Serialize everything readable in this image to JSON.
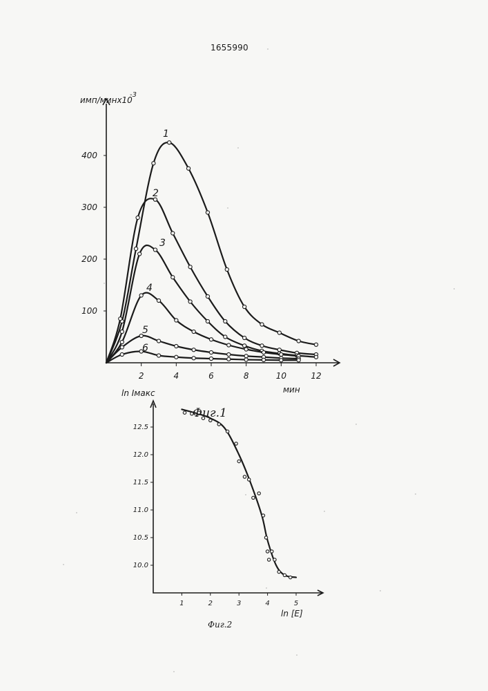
{
  "patent_number": "1655990",
  "figure_labels": [
    "Фиг.1",
    "Фиг.2"
  ],
  "chart_data": [
    {
      "type": "line",
      "title": "",
      "xlabel": "мин",
      "ylabel": "имп/минх10",
      "ylabel_superscript": "-3",
      "xlim": [
        0,
        12.5
      ],
      "ylim": [
        0,
        460
      ],
      "x_ticks": [
        2,
        4,
        6,
        8,
        10,
        12
      ],
      "y_ticks": [
        100,
        200,
        300,
        400
      ],
      "grid": false,
      "series": [
        {
          "name": "1",
          "points": [
            [
              0,
              0
            ],
            [
              0.9,
              80
            ],
            [
              1.7,
              220
            ],
            [
              2.7,
              385
            ],
            [
              3.6,
              425
            ],
            [
              4.7,
              375
            ],
            [
              5.8,
              290
            ],
            [
              6.9,
              180
            ],
            [
              7.9,
              108
            ],
            [
              8.9,
              74
            ],
            [
              9.9,
              58
            ],
            [
              11.0,
              42
            ],
            [
              12.0,
              35
            ]
          ]
        },
        {
          "name": "2",
          "points": [
            [
              0,
              0
            ],
            [
              0.8,
              85
            ],
            [
              1.8,
              280
            ],
            [
              2.8,
              315
            ],
            [
              3.8,
              250
            ],
            [
              4.8,
              185
            ],
            [
              5.8,
              128
            ],
            [
              6.8,
              80
            ],
            [
              7.9,
              48
            ],
            [
              8.9,
              33
            ],
            [
              9.9,
              25
            ],
            [
              10.9,
              19
            ],
            [
              12.0,
              16
            ]
          ]
        },
        {
          "name": "3",
          "points": [
            [
              0,
              0
            ],
            [
              0.9,
              60
            ],
            [
              1.9,
              210
            ],
            [
              2.8,
              218
            ],
            [
              3.8,
              165
            ],
            [
              4.8,
              118
            ],
            [
              5.8,
              80
            ],
            [
              6.8,
              50
            ],
            [
              7.9,
              33
            ],
            [
              8.9,
              23
            ],
            [
              9.9,
              18
            ],
            [
              10.9,
              14
            ],
            [
              12.0,
              11
            ]
          ]
        },
        {
          "name": "4",
          "points": [
            [
              0,
              0
            ],
            [
              0.9,
              40
            ],
            [
              2.0,
              130
            ],
            [
              3.0,
              120
            ],
            [
              4.0,
              82
            ],
            [
              5.0,
              60
            ],
            [
              6.0,
              45
            ],
            [
              7.0,
              34
            ],
            [
              8.0,
              26
            ],
            [
              9.0,
              20
            ],
            [
              10.0,
              16
            ],
            [
              11.0,
              13
            ]
          ]
        },
        {
          "name": "5",
          "points": [
            [
              0,
              0
            ],
            [
              0.9,
              30
            ],
            [
              2.0,
              52
            ],
            [
              3.0,
              42
            ],
            [
              4.0,
              32
            ],
            [
              5.0,
              25
            ],
            [
              6.0,
              20
            ],
            [
              7.0,
              16
            ],
            [
              8.0,
              13
            ],
            [
              9.0,
              11
            ],
            [
              10.0,
              9
            ],
            [
              11.0,
              8
            ]
          ]
        },
        {
          "name": "6",
          "points": [
            [
              0,
              0
            ],
            [
              0.9,
              16
            ],
            [
              2.0,
              22
            ],
            [
              3.0,
              14
            ],
            [
              4.0,
              11
            ],
            [
              5.0,
              9
            ],
            [
              6.0,
              8
            ],
            [
              7.0,
              7
            ],
            [
              8.0,
              6
            ],
            [
              9.0,
              5.5
            ],
            [
              10.0,
              5
            ],
            [
              11.0,
              5
            ]
          ]
        }
      ]
    },
    {
      "type": "line",
      "title": "",
      "xlabel": "ln [E]",
      "ylabel": "ln Iмакс",
      "xlim": [
        0,
        5.5
      ],
      "ylim": [
        9.5,
        13.2
      ],
      "x_ticks": [
        1,
        2,
        3,
        4,
        5
      ],
      "y_ticks": [
        10.0,
        10.5,
        11.0,
        11.5,
        12.0,
        12.5
      ],
      "grid": false,
      "series": [
        {
          "name": "",
          "curve": [
            [
              1.0,
              12.82
            ],
            [
              1.5,
              12.75
            ],
            [
              2.0,
              12.66
            ],
            [
              2.5,
              12.48
            ],
            [
              3.0,
              12.0
            ],
            [
              3.4,
              11.5
            ],
            [
              3.8,
              10.9
            ],
            [
              4.0,
              10.45
            ],
            [
              4.3,
              10.0
            ],
            [
              4.6,
              9.82
            ],
            [
              5.0,
              9.78
            ]
          ],
          "points": [
            [
              1.1,
              12.76
            ],
            [
              1.35,
              12.74
            ],
            [
              1.6,
              12.76
            ],
            [
              1.75,
              12.66
            ],
            [
              2.0,
              12.62
            ],
            [
              2.3,
              12.55
            ],
            [
              2.6,
              12.42
            ],
            [
              2.9,
              12.2
            ],
            [
              3.0,
              11.88
            ],
            [
              3.2,
              11.6
            ],
            [
              3.35,
              11.55
            ],
            [
              3.5,
              11.22
            ],
            [
              3.7,
              11.3
            ],
            [
              3.85,
              10.9
            ],
            [
              3.95,
              10.5
            ],
            [
              4.0,
              10.25
            ],
            [
              4.05,
              10.1
            ],
            [
              4.15,
              10.25
            ],
            [
              4.25,
              10.1
            ],
            [
              4.4,
              9.88
            ],
            [
              4.6,
              9.82
            ],
            [
              4.8,
              9.78
            ]
          ]
        }
      ]
    }
  ]
}
